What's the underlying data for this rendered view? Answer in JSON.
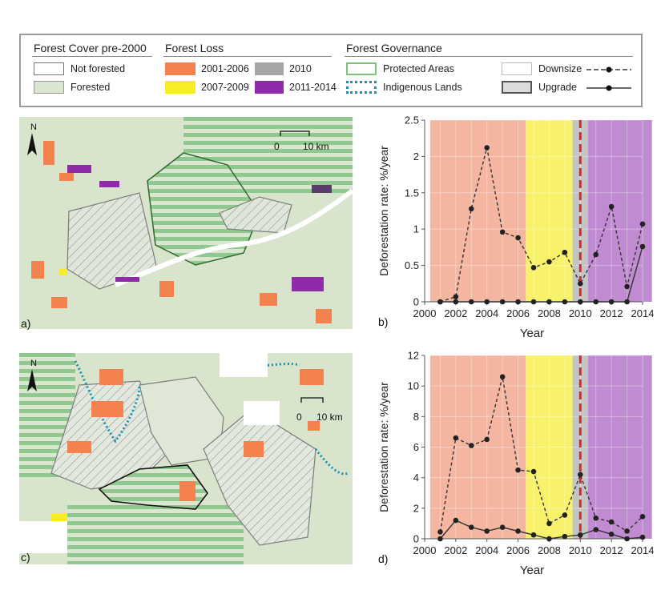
{
  "legend": {
    "forest_cover": {
      "header": "Forest Cover pre-2000",
      "items": [
        {
          "label": "Not forested",
          "color": "#ffffff"
        },
        {
          "label": "Forested",
          "color": "#dbe6d0"
        }
      ]
    },
    "forest_loss": {
      "header": "Forest Loss",
      "items": [
        {
          "label": "2001-2006",
          "color": "#f4824e"
        },
        {
          "label": "2007-2009",
          "color": "#f7ec25"
        },
        {
          "label": "2010",
          "color": "#a6a6a6"
        },
        {
          "label": "2011-2014",
          "color": "#8f2aa8"
        }
      ]
    },
    "forest_governance": {
      "header": "Forest Governance",
      "items": [
        {
          "label": "Protected Areas",
          "color": "#7cc47c"
        },
        {
          "label": "Indigenous Lands",
          "color": "#1a8fb0"
        },
        {
          "label": "Downsize"
        },
        {
          "label": "Upgrade"
        }
      ]
    }
  },
  "maps": {
    "a": {
      "letter": "a)",
      "scale_zero": "0",
      "scale_label": "10 km",
      "north": "N"
    },
    "c": {
      "letter": "c)",
      "scale_zero": "0",
      "scale_label": "10 km",
      "north": "N"
    }
  },
  "colors": {
    "period_2001_2006": "#f4b6a1",
    "period_2007_2009": "#f8f16a",
    "period_2010": "#c4c4c4",
    "period_2011_2014": "#c08bd0",
    "dashed_marker": "#d42a2a",
    "line": "#333333"
  },
  "chart_data": [
    {
      "type": "line",
      "panel": "b)",
      "xlabel": "Year",
      "ylabel": "Deforestation rate: %/year",
      "xlim": [
        2000,
        2014
      ],
      "ylim": [
        0,
        2.5
      ],
      "xticks": [
        "2000",
        "2002",
        "2004",
        "2006",
        "2008",
        "2010",
        "2012",
        "2014"
      ],
      "yticks": [
        "0",
        "0.5",
        "1",
        "1.5",
        "2",
        "2.5"
      ],
      "x": [
        2001,
        2002,
        2003,
        2004,
        2005,
        2006,
        2007,
        2008,
        2009,
        2010,
        2011,
        2012,
        2013,
        2014
      ],
      "series": [
        {
          "style": "dashed",
          "values": [
            0,
            0.07,
            1.28,
            2.12,
            0.96,
            0.88,
            0.47,
            0.55,
            0.68,
            0.25,
            0.65,
            1.31,
            0.21,
            1.07
          ]
        },
        {
          "style": "solid",
          "values": [
            0,
            0,
            0,
            0,
            0,
            0,
            0,
            0,
            0,
            0,
            0,
            0,
            0,
            0.76
          ]
        }
      ],
      "marker_year": 2010,
      "grid": true
    },
    {
      "type": "line",
      "panel": "d)",
      "xlabel": "Year",
      "ylabel": "Deforestation rate: %/year",
      "xlim": [
        2000,
        2014
      ],
      "ylim": [
        0,
        12
      ],
      "xticks": [
        "2000",
        "2002",
        "2004",
        "2006",
        "2008",
        "2010",
        "2012",
        "2014"
      ],
      "yticks": [
        "0",
        "2",
        "4",
        "6",
        "8",
        "10",
        "12"
      ],
      "x": [
        2001,
        2002,
        2003,
        2004,
        2005,
        2006,
        2007,
        2008,
        2009,
        2010,
        2011,
        2012,
        2013,
        2014
      ],
      "series": [
        {
          "style": "dashed",
          "values": [
            0.45,
            6.6,
            6.1,
            6.5,
            10.6,
            4.5,
            4.4,
            1.0,
            1.55,
            4.2,
            1.35,
            1.1,
            0.5,
            1.45
          ]
        },
        {
          "style": "solid",
          "values": [
            0,
            1.2,
            0.75,
            0.5,
            0.75,
            0.5,
            0.25,
            0,
            0.15,
            0.25,
            0.6,
            0.3,
            0,
            0.1
          ]
        }
      ],
      "marker_year": 2010,
      "grid": true
    }
  ]
}
